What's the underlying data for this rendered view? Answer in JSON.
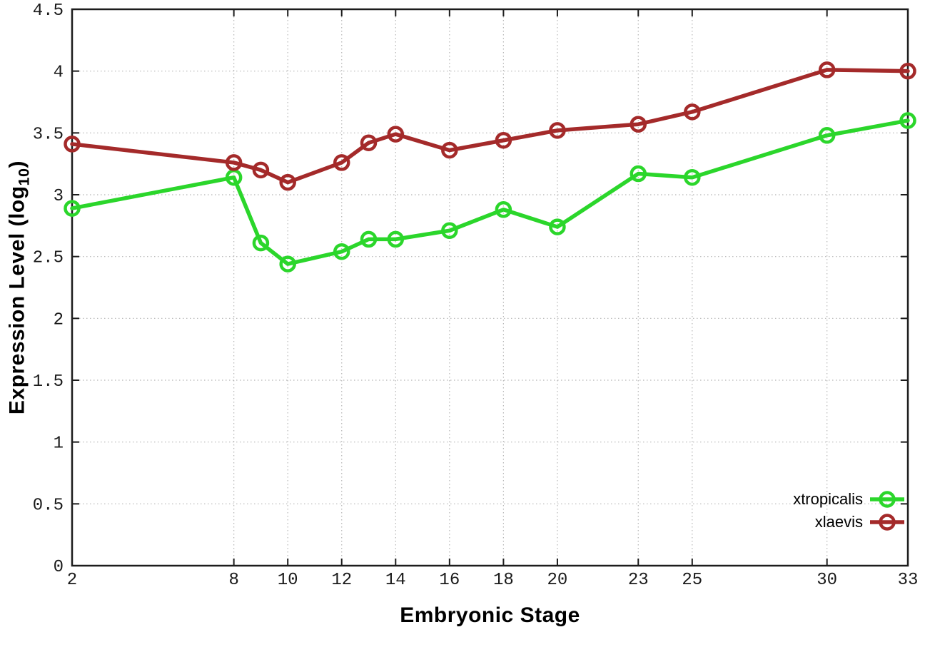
{
  "chart_data": {
    "type": "line",
    "title": "",
    "xlabel": "Embryonic Stage",
    "ylabel": "Expression Level (log10)",
    "ylabel_prefix": "Expression Level (log",
    "ylabel_sub": "10",
    "ylabel_suffix": ")",
    "x": [
      2,
      8,
      9,
      10,
      12,
      13,
      14,
      16,
      18,
      20,
      23,
      25,
      30,
      33
    ],
    "series": [
      {
        "name": "xtropicalis",
        "color": "#2bd62b",
        "values": [
          2.89,
          3.14,
          2.61,
          2.44,
          2.54,
          2.64,
          2.64,
          2.71,
          2.88,
          2.74,
          3.17,
          3.14,
          3.48,
          3.6
        ]
      },
      {
        "name": "xlaevis",
        "color": "#a42a2a",
        "values": [
          3.41,
          3.26,
          3.2,
          3.1,
          3.26,
          3.42,
          3.49,
          3.36,
          3.44,
          3.52,
          3.57,
          3.67,
          4.01,
          4.0
        ]
      }
    ],
    "xticks": [
      2,
      8,
      10,
      12,
      14,
      16,
      18,
      20,
      23,
      25,
      30,
      33
    ],
    "xtick_labels": [
      "2",
      "8",
      "10",
      "12",
      "14",
      "16",
      "18",
      "20",
      "23",
      "25",
      "30",
      "33"
    ],
    "yticks": [
      0,
      0.5,
      1,
      1.5,
      2,
      2.5,
      3,
      3.5,
      4,
      4.5
    ],
    "ytick_labels": [
      "0",
      "0.5",
      "1",
      "1.5",
      "2",
      "2.5",
      "3",
      "3.5",
      "4",
      "4.5"
    ],
    "xlim": [
      2,
      33
    ],
    "ylim": [
      0,
      4.5
    ],
    "grid": true,
    "legend_position": "bottom-right-inside",
    "marker": "open-circle"
  },
  "colors": {
    "background": "#ffffff",
    "border": "#1c1c1c",
    "grid": "#b5b5b5",
    "text": "#000000"
  }
}
